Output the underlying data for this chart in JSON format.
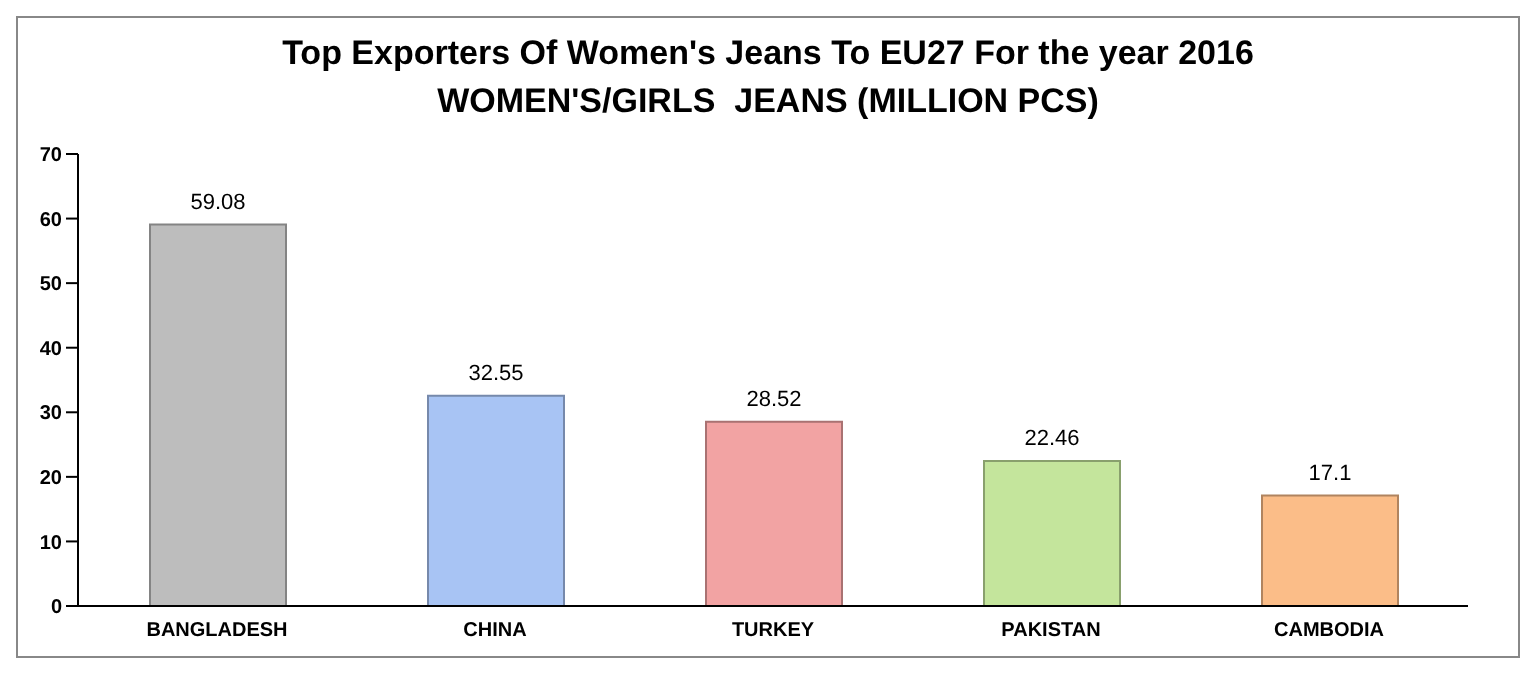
{
  "chart_data": {
    "type": "bar",
    "title": "Top Exporters Of Women's Jeans To EU27 For the year 2016",
    "subtitle": "WOMEN'S/GIRLS  JEANS (MILLION PCS)",
    "categories": [
      "BANGLADESH",
      "CHINA",
      "TURKEY",
      "PAKISTAN",
      "CAMBODIA"
    ],
    "values": [
      59.08,
      32.55,
      28.52,
      22.46,
      17.1
    ],
    "colors": [
      "#bdbdbd",
      "#a8c4f4",
      "#f2a3a3",
      "#c4e59c",
      "#fbbd88"
    ],
    "ylim": [
      0,
      70
    ],
    "yticks": [
      0,
      10,
      20,
      30,
      40,
      50,
      60,
      70
    ],
    "data_labels": true
  }
}
